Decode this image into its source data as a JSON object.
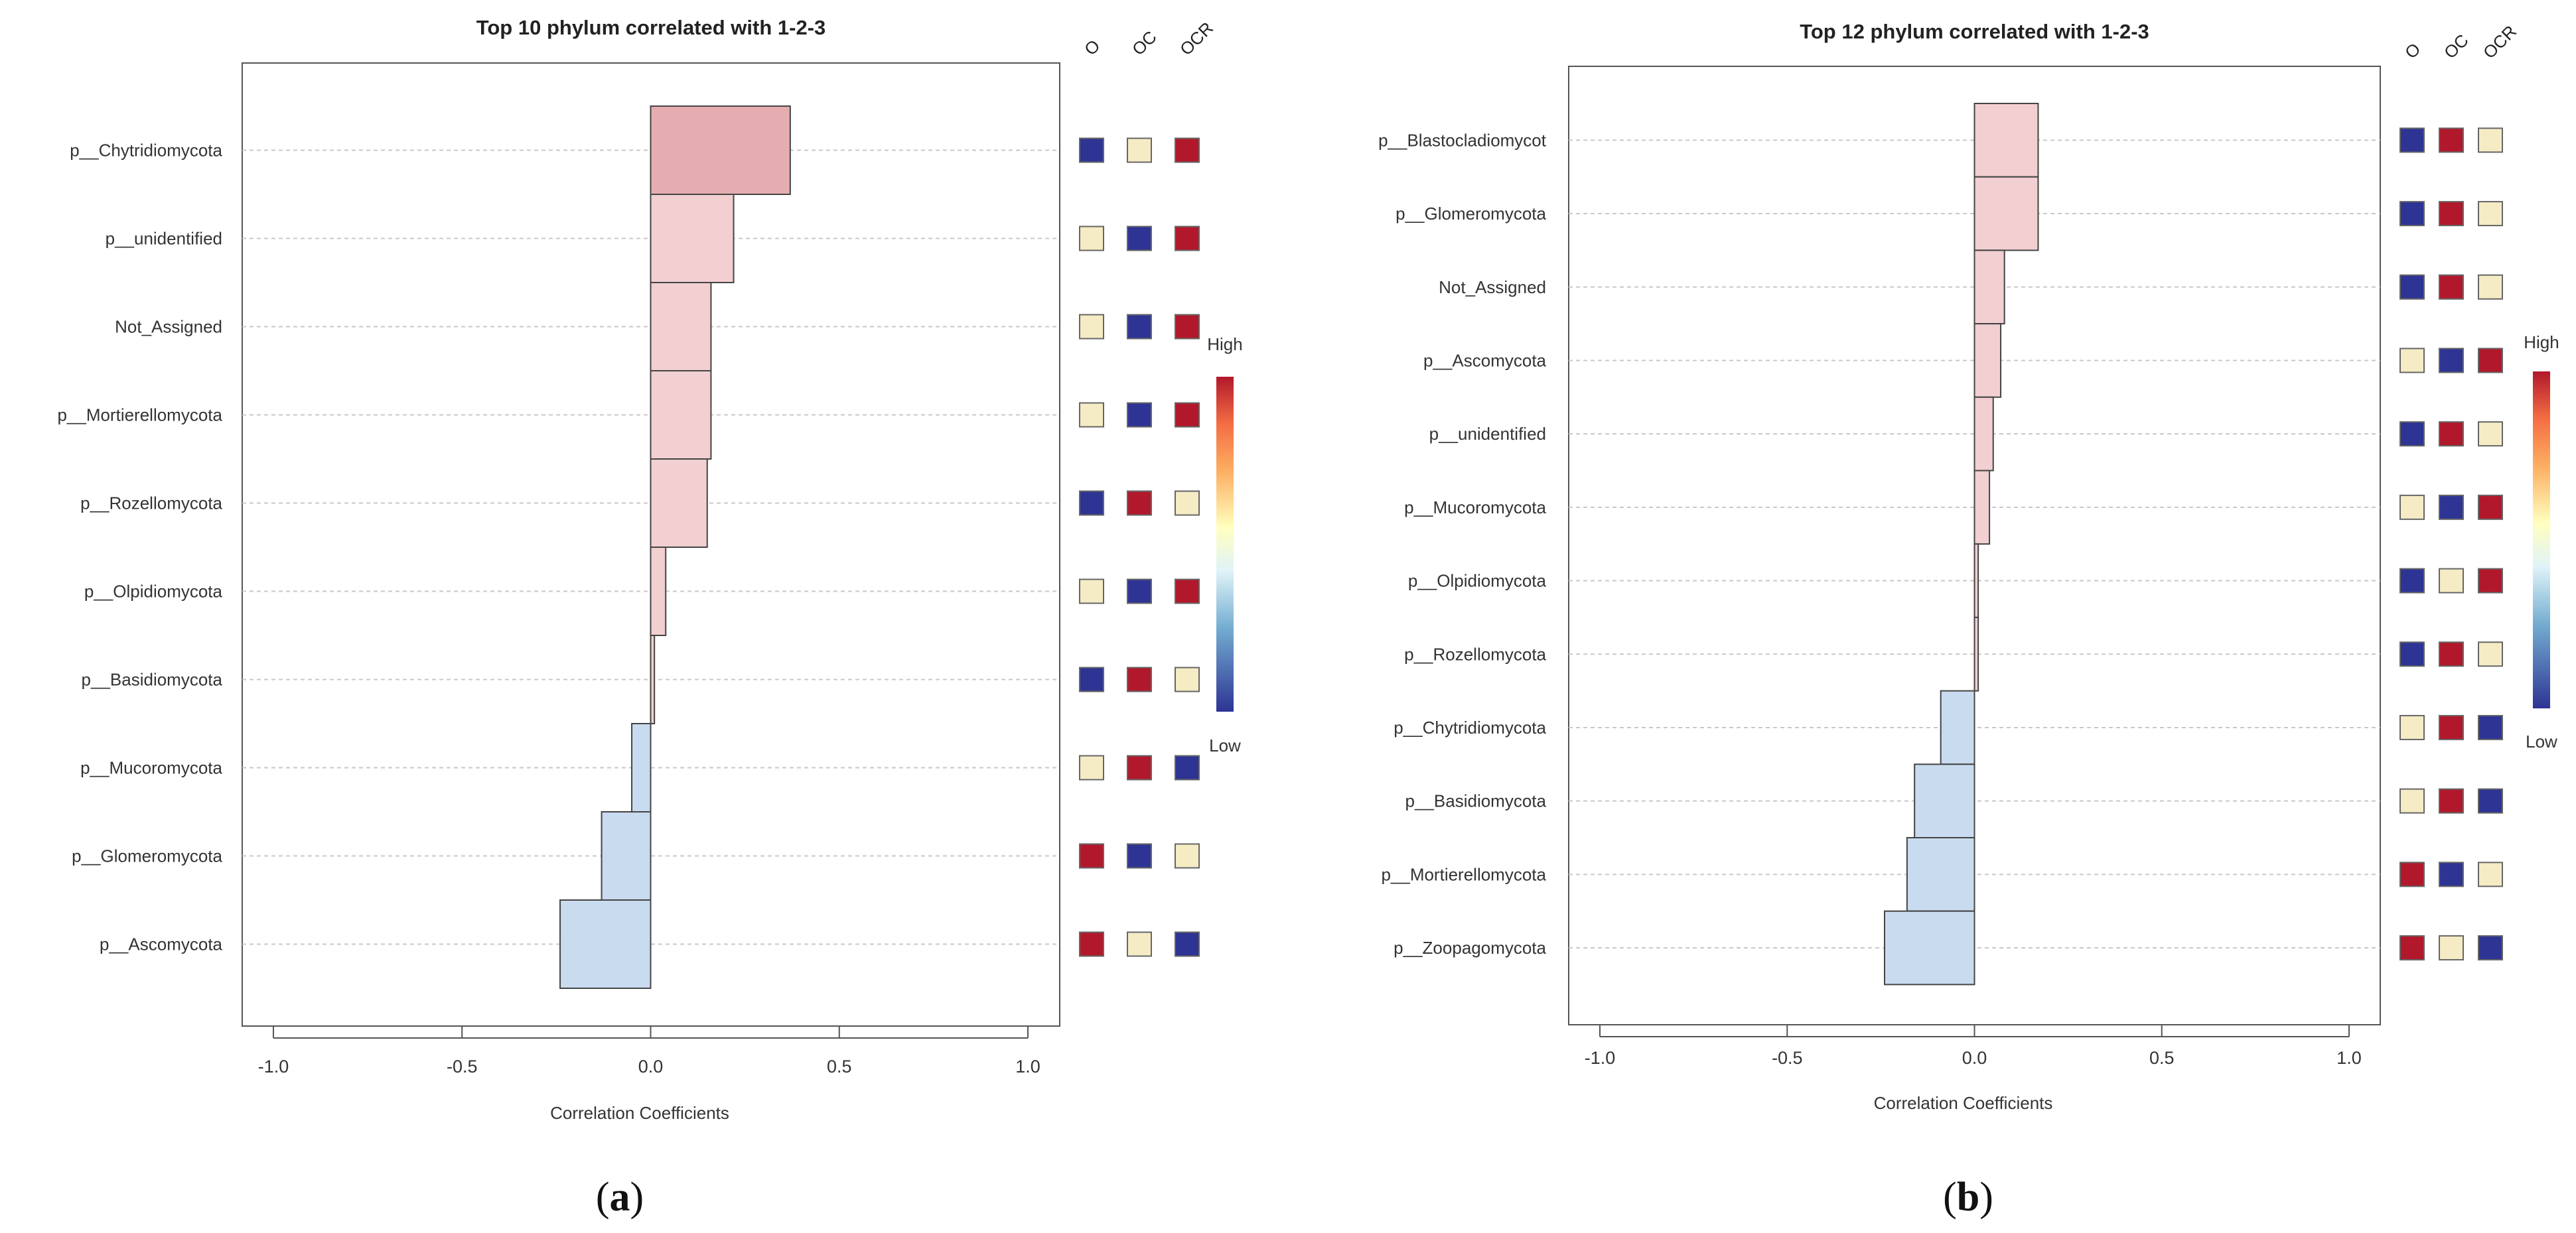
{
  "chart_data": [
    {
      "type": "bar",
      "orientation": "horizontal",
      "panel_label": "a",
      "title": "Top 10 phylum correlated with 1-2-3",
      "xlabel": "Correlation Coefficients",
      "xlim": [
        -1.0,
        1.0
      ],
      "xticks": [
        "-1.0",
        "-0.5",
        "0.0",
        "0.5",
        "1.0"
      ],
      "grid": true,
      "categories": [
        "p__Chytridiomycota",
        "p__unidentified",
        "Not_Assigned",
        "p__Mortierellomycota",
        "p__Rozellomycota",
        "p__Olpidiomycota",
        "p__Basidiomycota",
        "p__Mucoromycota",
        "p__Glomeromycota",
        "p__Ascomycota"
      ],
      "values": [
        0.37,
        0.22,
        0.16,
        0.16,
        0.15,
        0.04,
        0.01,
        -0.05,
        -0.13,
        -0.24
      ],
      "groups": [
        "O",
        "OC",
        "OCR"
      ],
      "group_levels": [
        [
          "low",
          "mid",
          "high"
        ],
        [
          "mid",
          "low",
          "high"
        ],
        [
          "mid",
          "low",
          "high"
        ],
        [
          "mid",
          "low",
          "high"
        ],
        [
          "low",
          "high",
          "mid"
        ],
        [
          "mid",
          "low",
          "high"
        ],
        [
          "low",
          "high",
          "mid"
        ],
        [
          "mid",
          "high",
          "low"
        ],
        [
          "high",
          "low",
          "mid"
        ],
        [
          "high",
          "mid",
          "low"
        ]
      ],
      "legend": {
        "high_label": "High",
        "low_label": "Low",
        "position": "right"
      }
    },
    {
      "type": "bar",
      "orientation": "horizontal",
      "panel_label": "b",
      "title": "Top 12 phylum correlated with 1-2-3",
      "xlabel": "Correlation Coefficients",
      "xlim": [
        -1.0,
        1.0
      ],
      "xticks": [
        "-1.0",
        "-0.5",
        "0.0",
        "0.5",
        "1.0"
      ],
      "grid": true,
      "categories": [
        "p__Blastocladiomycot",
        "p__Glomeromycota",
        "Not_Assigned",
        "p__Ascomycota",
        "p__unidentified",
        "p__Mucoromycota",
        "p__Olpidiomycota",
        "p__Rozellomycota",
        "p__Chytridiomycota",
        "p__Basidiomycota",
        "p__Mortierellomycota",
        "p__Zoopagomycota"
      ],
      "values": [
        0.17,
        0.17,
        0.08,
        0.07,
        0.05,
        0.04,
        0.01,
        0.01,
        -0.09,
        -0.16,
        -0.18,
        -0.24
      ],
      "groups": [
        "O",
        "OC",
        "OCR"
      ],
      "group_levels": [
        [
          "low",
          "high",
          "mid"
        ],
        [
          "low",
          "high",
          "mid"
        ],
        [
          "low",
          "high",
          "mid"
        ],
        [
          "mid",
          "low",
          "high"
        ],
        [
          "low",
          "high",
          "mid"
        ],
        [
          "mid",
          "low",
          "high"
        ],
        [
          "low",
          "mid",
          "high"
        ],
        [
          "low",
          "high",
          "mid"
        ],
        [
          "mid",
          "high",
          "low"
        ],
        [
          "mid",
          "high",
          "low"
        ],
        [
          "high",
          "low",
          "mid"
        ],
        [
          "high",
          "mid",
          "low"
        ]
      ],
      "legend": {
        "high_label": "High",
        "low_label": "Low",
        "position": "right"
      }
    }
  ],
  "colors": {
    "high": "#b2182b",
    "mid": "#f5ecc5",
    "low": "#2d3494",
    "positive_bar_strong": "#e6adb0",
    "positive_bar": "#f2cfd1",
    "negative_bar": "#c9dbef"
  }
}
